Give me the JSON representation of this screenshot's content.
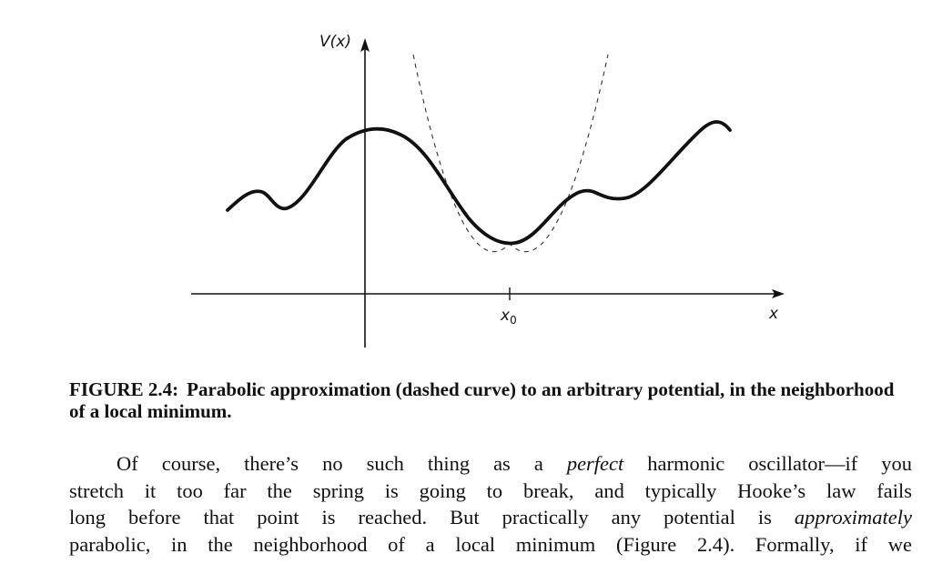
{
  "figure": {
    "y_axis_label": "V(x)",
    "x_axis_label": "x",
    "x0_label": "x",
    "x0_subscript": "0"
  },
  "caption": {
    "label": "FIGURE 2.4:",
    "text": "Parabolic approximation (dashed curve) to an arbitrary potential, in the neighborhood of a local minimum."
  },
  "body": {
    "line1_a": "Of course, there’s no such thing as a ",
    "line1_em": "perfect",
    "line1_b": " harmonic oscillator—if you",
    "line2": "stretch it too far the spring is going to break, and typically Hooke’s law fails",
    "line3_a": "long before that point is reached. But practically any potential is ",
    "line3_em": "approximately",
    "line4": "parabolic, in the neighborhood of a local minimum (Figure 2.4). Formally, if we"
  }
}
